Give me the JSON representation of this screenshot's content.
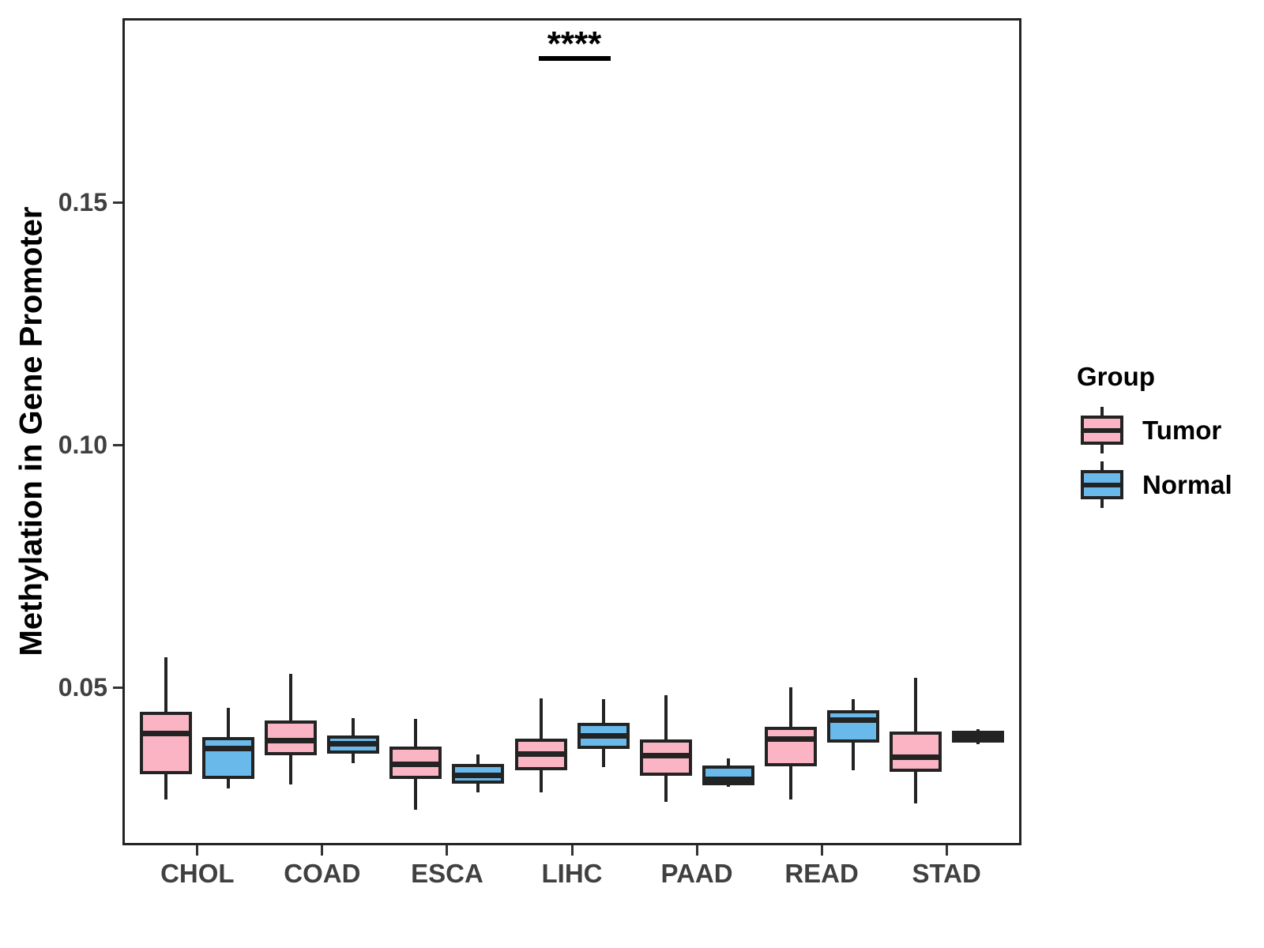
{
  "figure": {
    "background": "#ffffff"
  },
  "legend": {
    "title": "Group",
    "items": [
      {
        "label": "Tumor",
        "color": "#FAB4C3"
      },
      {
        "label": "Normal",
        "color": "#69B9EB"
      }
    ]
  },
  "colors": {
    "tumor_fill": "#FAB4C3",
    "normal_fill": "#69B9EB",
    "stroke": "#232323",
    "tick_label": "#404040",
    "axis_title": "#000000"
  },
  "chart_data": {
    "type": "boxplot",
    "title": "",
    "xlabel": "",
    "ylabel": "Methylation in Gene Promoter",
    "grid": false,
    "legend_position": "right",
    "categories": [
      "CHOL",
      "COAD",
      "ESCA",
      "LIHC",
      "PAAD",
      "READ",
      "STAD"
    ],
    "yticks": [
      {
        "label": "0.05",
        "value": 0.05
      },
      {
        "label": "0.10",
        "value": 0.1
      },
      {
        "label": "0.15",
        "value": 0.15
      }
    ],
    "ylim": [
      0.017,
      0.188
    ],
    "series": [
      {
        "name": "Tumor",
        "fill": "#FAB4C3",
        "boxes": [
          {
            "whisker_low": 0.0269,
            "q1": 0.0324,
            "median": 0.0405,
            "q3": 0.0446,
            "whisker_high": 0.0562
          },
          {
            "whisker_low": 0.0299,
            "q1": 0.0363,
            "median": 0.039,
            "q3": 0.0429,
            "whisker_high": 0.0527
          },
          {
            "whisker_low": 0.0248,
            "q1": 0.0315,
            "median": 0.0341,
            "q3": 0.0375,
            "whisker_high": 0.0435
          },
          {
            "whisker_low": 0.0283,
            "q1": 0.0332,
            "median": 0.0362,
            "q3": 0.0391,
            "whisker_high": 0.0478
          },
          {
            "whisker_low": 0.0264,
            "q1": 0.0321,
            "median": 0.0359,
            "q3": 0.0389,
            "whisker_high": 0.0484
          },
          {
            "whisker_low": 0.0269,
            "q1": 0.034,
            "median": 0.0394,
            "q3": 0.0416,
            "whisker_high": 0.05
          },
          {
            "whisker_low": 0.026,
            "q1": 0.0329,
            "median": 0.0356,
            "q3": 0.0405,
            "whisker_high": 0.0519
          }
        ]
      },
      {
        "name": "Normal",
        "fill": "#69B9EB",
        "boxes": [
          {
            "whisker_low": 0.0291,
            "q1": 0.0315,
            "median": 0.0374,
            "q3": 0.0394,
            "whisker_high": 0.0458
          },
          {
            "whisker_low": 0.0344,
            "q1": 0.0367,
            "median": 0.0383,
            "q3": 0.0397,
            "whisker_high": 0.0437
          },
          {
            "whisker_low": 0.0284,
            "q1": 0.0304,
            "median": 0.0318,
            "q3": 0.0338,
            "whisker_high": 0.0362
          },
          {
            "whisker_low": 0.0336,
            "q1": 0.0377,
            "median": 0.04,
            "q3": 0.0424,
            "whisker_high": 0.0476
          },
          {
            "whisker_low": 0.0294,
            "q1": 0.0301,
            "median": 0.0311,
            "q3": 0.0335,
            "whisker_high": 0.0354
          },
          {
            "whisker_low": 0.0329,
            "q1": 0.039,
            "median": 0.0432,
            "q3": 0.045,
            "whisker_high": 0.0476
          },
          {
            "whisker_low": 0.0382,
            "q1": 0.0389,
            "median": 0.0398,
            "q3": 0.0407,
            "whisker_high": 0.0414
          }
        ]
      }
    ],
    "annotation": {
      "text": "****",
      "category": "LIHC",
      "comparison": [
        "Tumor",
        "Normal"
      ]
    }
  }
}
